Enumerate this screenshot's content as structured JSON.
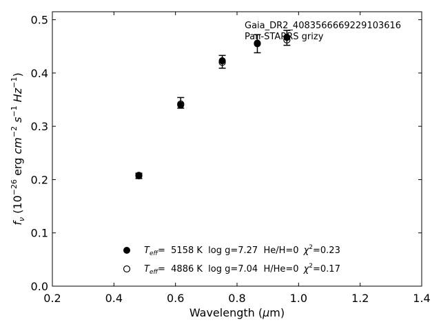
{
  "chart_data": {
    "type": "scatter",
    "title": "",
    "xlabel": "Wavelength (μm)",
    "ylabel": "fν (10⁻²⁶ erg cm⁻² s⁻¹ Hz⁻¹)",
    "xlim": [
      0.2,
      1.4
    ],
    "ylim": [
      0.0,
      0.515
    ],
    "xticks": [
      0.2,
      0.4,
      0.6,
      0.8,
      1.0,
      1.2,
      1.4
    ],
    "xtick_labels": [
      "0.2",
      "0.4",
      "0.6",
      "0.8",
      "1.0",
      "1.2",
      "1.4"
    ],
    "yticks": [
      0.0,
      0.1,
      0.2,
      0.3,
      0.4,
      0.5
    ],
    "ytick_labels": [
      "0.0",
      "0.1",
      "0.2",
      "0.3",
      "0.4",
      "0.5"
    ],
    "grid": false,
    "legend_position": "bottom-center",
    "annotations": [
      "Gaia_DR2_4083566669229103616",
      "Pan-STARRS grizy"
    ],
    "observed": {
      "x": [
        0.481,
        0.617,
        0.752,
        0.866,
        0.962
      ],
      "y": [
        0.207,
        0.344,
        0.421,
        0.455,
        0.466
      ],
      "yerr": [
        0.005,
        0.01,
        0.012,
        0.017,
        0.014
      ]
    },
    "series": [
      {
        "name": "Teff= 5158 K log g=7.27 He/H=0 χ²=0.23",
        "marker": "filled-circle",
        "x": [
          0.481,
          0.617,
          0.752,
          0.866,
          0.962
        ],
        "y": [
          0.208,
          0.34,
          0.423,
          0.455,
          0.467
        ]
      },
      {
        "name": "Teff= 4886 K log g=7.04 H/He=0 χ²=0.17",
        "marker": "open-circle",
        "x": [
          0.481,
          0.617,
          0.752,
          0.866,
          0.962
        ],
        "y": [
          0.207,
          0.342,
          0.42,
          0.456,
          0.462
        ]
      }
    ],
    "legend": [
      {
        "marker": "filled-circle",
        "teff_label": "T",
        "teff_sub": "eff",
        "text": "=  5158 K  log g=7.27  He/H=0",
        "chi_label": "χ",
        "chi_sup": "2",
        "chi_value": "=0.23"
      },
      {
        "marker": "open-circle",
        "teff_label": "T",
        "teff_sub": "eff",
        "text": "=  4886 K  log g=7.04  H/He=0",
        "chi_label": "χ",
        "chi_sup": "2",
        "chi_value": "=0.17"
      }
    ],
    "colors": {
      "axes": "#000000",
      "marker": "#000000",
      "background": "#ffffff"
    }
  }
}
